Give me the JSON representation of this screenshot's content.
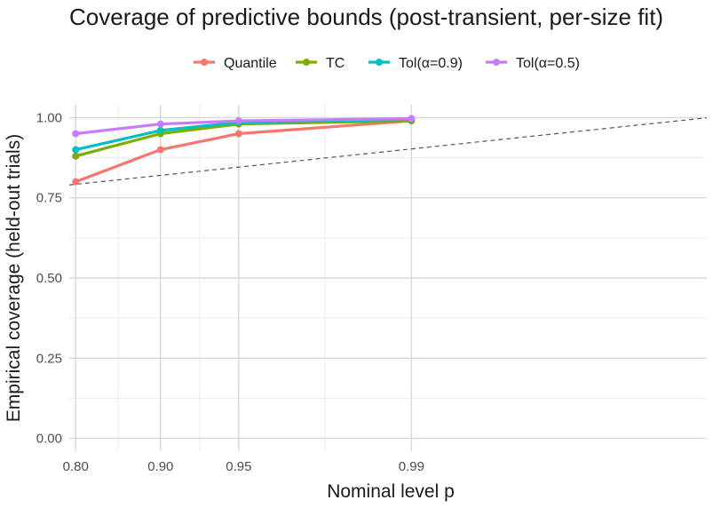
{
  "chart_data": {
    "type": "line",
    "title": "Coverage of predictive bounds (post-transient, per-size fit)",
    "xlabel": "Nominal level p",
    "ylabel": "Empirical coverage (held-out trials)",
    "x": [
      0.8,
      0.9,
      0.95,
      0.99
    ],
    "xlim": [
      0.79,
      0.9994
    ],
    "ylim": [
      0.0,
      1.0
    ],
    "x_ticks": [
      "0.80",
      "0.90",
      "0.95",
      "0.99"
    ],
    "y_ticks": [
      "0.00",
      "0.25",
      "0.50",
      "0.75",
      "1.00"
    ],
    "grid": true,
    "legend_position": "top",
    "reference_line": "y = x (dashed)",
    "series": [
      {
        "name": "Quantile",
        "color": "#F8766D",
        "values": [
          0.8,
          0.9,
          0.95,
          0.99
        ]
      },
      {
        "name": "TC",
        "color": "#7CAE00",
        "values": [
          0.88,
          0.95,
          0.98,
          0.99
        ]
      },
      {
        "name": "Tol(α=0.9)",
        "color": "#00BFC4",
        "values": [
          0.9,
          0.96,
          0.985,
          0.995
        ]
      },
      {
        "name": "Tol(α=0.5)",
        "color": "#C77CFF",
        "values": [
          0.95,
          0.98,
          0.99,
          0.997
        ]
      }
    ]
  }
}
